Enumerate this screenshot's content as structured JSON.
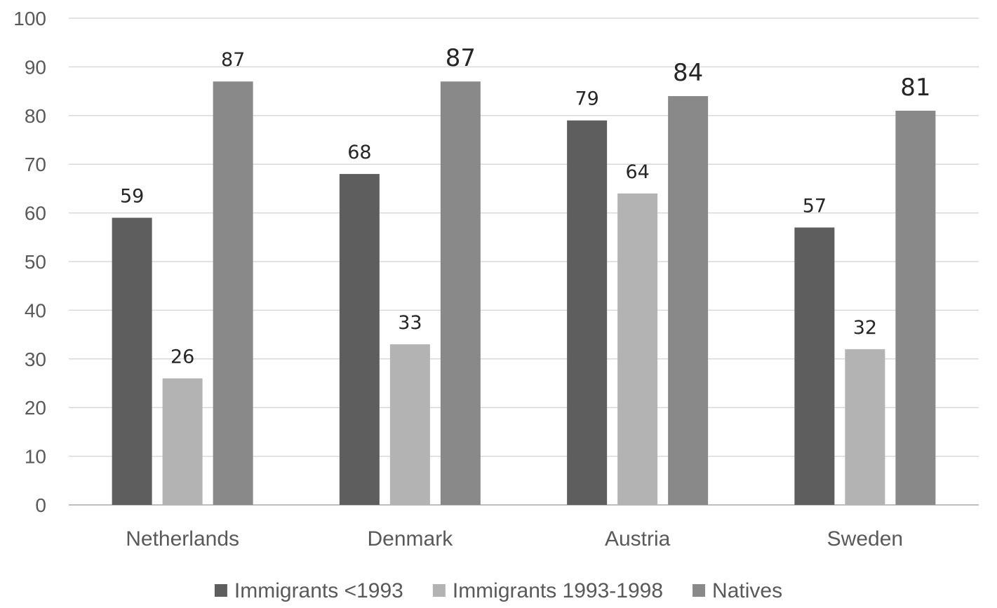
{
  "chart_data": {
    "type": "bar",
    "title": "",
    "xlabel": "",
    "ylabel": "",
    "categories": [
      "Netherlands",
      "Denmark",
      "Austria",
      "Sweden"
    ],
    "series": [
      {
        "name": "Immigrants <1993",
        "color": "#5e5e5e",
        "values": [
          59,
          68,
          79,
          57
        ]
      },
      {
        "name": "Immigrants 1993-1998",
        "color": "#b3b3b3",
        "values": [
          26,
          33,
          64,
          32
        ]
      },
      {
        "name": "Natives",
        "color": "#898989",
        "values": [
          87,
          87,
          84,
          81
        ]
      }
    ],
    "ylim": [
      0,
      100
    ],
    "yticks": [
      0,
      10,
      20,
      30,
      40,
      50,
      60,
      70,
      80,
      90,
      100
    ],
    "grid": true,
    "legend_position": "bottom",
    "data_labels": true,
    "gridline_color": "#d9d9d9",
    "axis_color": "#bfbfbf"
  }
}
